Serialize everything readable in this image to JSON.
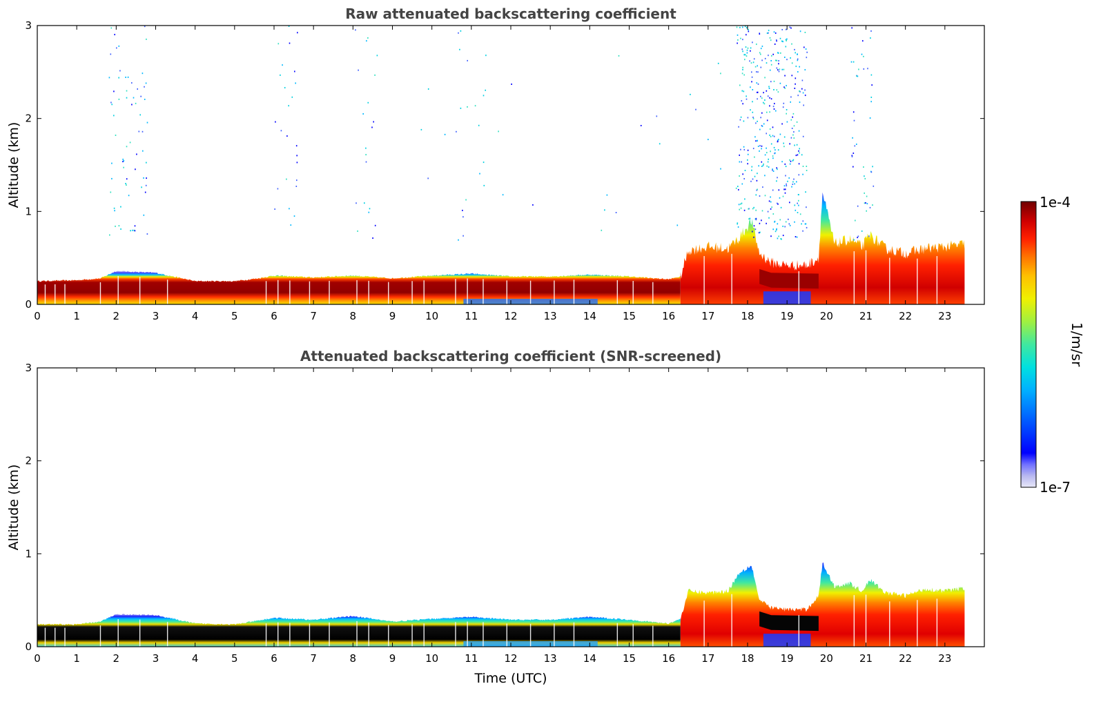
{
  "chart_data": [
    {
      "type": "heatmap",
      "title": "Raw attenuated backscattering coefficient",
      "xlabel": "",
      "ylabel": "Altitude (km)",
      "xlim": [
        0,
        24
      ],
      "ylim": [
        0,
        3
      ],
      "xticks": [
        0,
        1,
        2,
        3,
        4,
        5,
        6,
        7,
        8,
        9,
        10,
        11,
        12,
        13,
        14,
        15,
        16,
        17,
        18,
        19,
        20,
        21,
        22,
        23
      ],
      "yticks": [
        0,
        1,
        2,
        3
      ],
      "variant": "raw",
      "data_end_hour": 23.5,
      "layer_top_km": [
        [
          0,
          0.25
        ],
        [
          1,
          0.26
        ],
        [
          1.6,
          0.28
        ],
        [
          2,
          0.36
        ],
        [
          3,
          0.34
        ],
        [
          4,
          0.25
        ],
        [
          5,
          0.25
        ],
        [
          5.6,
          0.28
        ],
        [
          6,
          0.31
        ],
        [
          7,
          0.29
        ],
        [
          8,
          0.31
        ],
        [
          9,
          0.28
        ],
        [
          10,
          0.31
        ],
        [
          11,
          0.33
        ],
        [
          12,
          0.3
        ],
        [
          13,
          0.3
        ],
        [
          14,
          0.32
        ],
        [
          15,
          0.3
        ],
        [
          16,
          0.27
        ],
        [
          16.3,
          0.3
        ],
        [
          16.5,
          0.58
        ],
        [
          17,
          0.62
        ],
        [
          17.5,
          0.6
        ],
        [
          17.8,
          0.72
        ],
        [
          18.1,
          0.9
        ],
        [
          18.3,
          0.55
        ],
        [
          18.6,
          0.45
        ],
        [
          19,
          0.42
        ],
        [
          19.5,
          0.42
        ],
        [
          19.8,
          0.5
        ],
        [
          19.9,
          1.2
        ],
        [
          20.2,
          0.65
        ],
        [
          20.6,
          0.7
        ],
        [
          20.9,
          0.62
        ],
        [
          21.1,
          0.75
        ],
        [
          21.5,
          0.6
        ],
        [
          22,
          0.55
        ],
        [
          22.5,
          0.6
        ],
        [
          23,
          0.62
        ],
        [
          23.5,
          0.65
        ]
      ],
      "colorbar": {
        "min_label": "1e-7",
        "max_label": "1e-4",
        "label": "1/m/sr"
      },
      "colormap": [
        "#e8e8f8",
        "#b8b8f0",
        "#7070ff",
        "#0000ff",
        "#0060ff",
        "#00b0ff",
        "#00e0e0",
        "#40e8a0",
        "#a0f040",
        "#f0f000",
        "#ffc000",
        "#ff7000",
        "#ff2000",
        "#d00000",
        "#900000",
        "#600000"
      ]
    },
    {
      "type": "heatmap",
      "title": "Attenuated backscattering coefficient (SNR-screened)",
      "xlabel": "Time (UTC)",
      "ylabel": "Altitude (km)",
      "xlim": [
        0,
        24
      ],
      "ylim": [
        0,
        3
      ],
      "xticks": [
        0,
        1,
        2,
        3,
        4,
        5,
        6,
        7,
        8,
        9,
        10,
        11,
        12,
        13,
        14,
        15,
        16,
        17,
        18,
        19,
        20,
        21,
        22,
        23
      ],
      "yticks": [
        0,
        1,
        2,
        3
      ],
      "variant": "screened",
      "data_end_hour": 23.5,
      "layer_top_km": [
        [
          0,
          0.24
        ],
        [
          1,
          0.24
        ],
        [
          1.6,
          0.27
        ],
        [
          2,
          0.35
        ],
        [
          3,
          0.34
        ],
        [
          4,
          0.25
        ],
        [
          5,
          0.24
        ],
        [
          5.6,
          0.28
        ],
        [
          6,
          0.31
        ],
        [
          7,
          0.29
        ],
        [
          8,
          0.33
        ],
        [
          9,
          0.27
        ],
        [
          10,
          0.3
        ],
        [
          11,
          0.32
        ],
        [
          12,
          0.29
        ],
        [
          13,
          0.29
        ],
        [
          14,
          0.32
        ],
        [
          15,
          0.29
        ],
        [
          16,
          0.25
        ],
        [
          16.3,
          0.3
        ],
        [
          16.5,
          0.6
        ],
        [
          17,
          0.58
        ],
        [
          17.5,
          0.6
        ],
        [
          17.8,
          0.8
        ],
        [
          18.1,
          0.88
        ],
        [
          18.3,
          0.5
        ],
        [
          18.6,
          0.42
        ],
        [
          19,
          0.4
        ],
        [
          19.5,
          0.4
        ],
        [
          19.8,
          0.55
        ],
        [
          19.9,
          0.9
        ],
        [
          20.2,
          0.65
        ],
        [
          20.6,
          0.68
        ],
        [
          20.9,
          0.6
        ],
        [
          21.1,
          0.72
        ],
        [
          21.5,
          0.58
        ],
        [
          22,
          0.55
        ],
        [
          22.5,
          0.62
        ],
        [
          23,
          0.6
        ],
        [
          23.5,
          0.63
        ]
      ]
    }
  ]
}
